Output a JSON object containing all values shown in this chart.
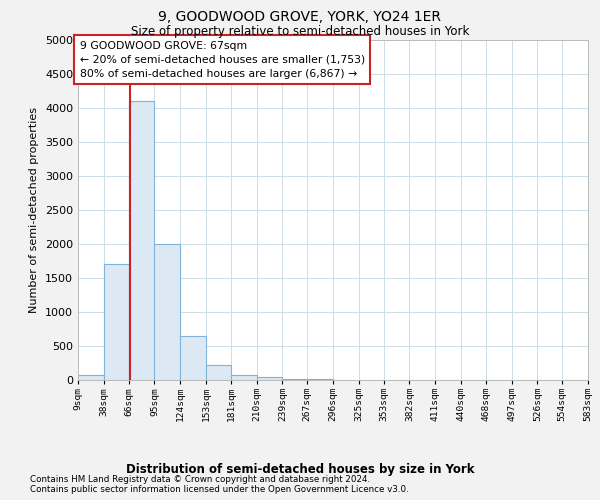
{
  "title": "9, GOODWOOD GROVE, YORK, YO24 1ER",
  "subtitle": "Size of property relative to semi-detached houses in York",
  "xlabel": "Distribution of semi-detached houses by size in York",
  "ylabel": "Number of semi-detached properties",
  "property_size": 67,
  "annotation_line1": "9 GOODWOOD GROVE: 67sqm",
  "annotation_line2": "← 20% of semi-detached houses are smaller (1,753)",
  "annotation_line3": "80% of semi-detached houses are larger (6,867) →",
  "bin_edges": [
    9,
    38,
    66,
    95,
    124,
    153,
    181,
    210,
    239,
    267,
    296,
    325,
    353,
    382,
    411,
    440,
    468,
    497,
    526,
    554,
    583
  ],
  "bin_counts": [
    75,
    1700,
    4100,
    2000,
    650,
    220,
    75,
    50,
    20,
    10,
    5,
    3,
    2,
    1,
    1,
    0,
    0,
    0,
    0,
    0
  ],
  "bar_color": "#dce9f5",
  "bar_edge_color": "#7fb3d9",
  "red_line_color": "#cc2222",
  "annotation_box_edge": "#cc2222",
  "grid_color": "#ccdde8",
  "ylim": [
    0,
    5000
  ],
  "yticks": [
    0,
    500,
    1000,
    1500,
    2000,
    2500,
    3000,
    3500,
    4000,
    4500,
    5000
  ],
  "footer_line1": "Contains HM Land Registry data © Crown copyright and database right 2024.",
  "footer_line2": "Contains public sector information licensed under the Open Government Licence v3.0.",
  "bg_color": "#f2f2f2"
}
